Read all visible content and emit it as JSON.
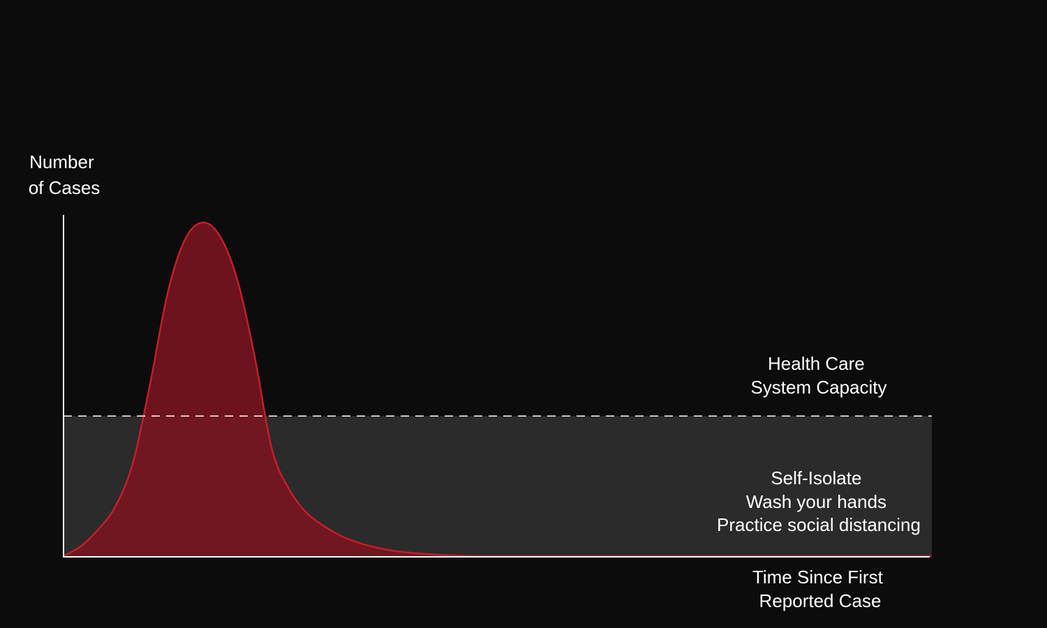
{
  "chart_data": {
    "type": "area",
    "ylabel_lines": [
      "Number",
      "of Cases"
    ],
    "xlabel_lines": [
      "Time Since First",
      "Reported Case"
    ],
    "x_range": [
      0,
      100
    ],
    "y_range": [
      0,
      100
    ],
    "series": [
      {
        "color": "#c41e2a",
        "fill": "#7a1520",
        "x": [
          0,
          2,
          4,
          6,
          8,
          10,
          12,
          14,
          16,
          18,
          20,
          22,
          24,
          26,
          28,
          30,
          32,
          34,
          36,
          38,
          40,
          42,
          44,
          46,
          48,
          50,
          55,
          60,
          65,
          70,
          80,
          90,
          100
        ],
        "y": [
          0,
          3,
          8,
          15,
          28,
          52,
          79,
          95,
          100,
          96,
          83,
          60,
          32,
          20,
          13,
          9,
          6,
          4,
          2.6,
          1.6,
          1,
          0.6,
          0.3,
          0.1,
          0,
          0,
          0,
          0,
          0,
          0,
          0,
          0,
          0
        ]
      }
    ],
    "capacity": {
      "value": 42,
      "label_lines": [
        "Health Care",
        "System Capacity"
      ],
      "line_style": "dashed",
      "band_color": "#2b2b2b"
    },
    "annotation_lines": [
      "Self-Isolate",
      "Wash your hands",
      "Practice social distancing"
    ],
    "grid": false,
    "legend": "none"
  }
}
